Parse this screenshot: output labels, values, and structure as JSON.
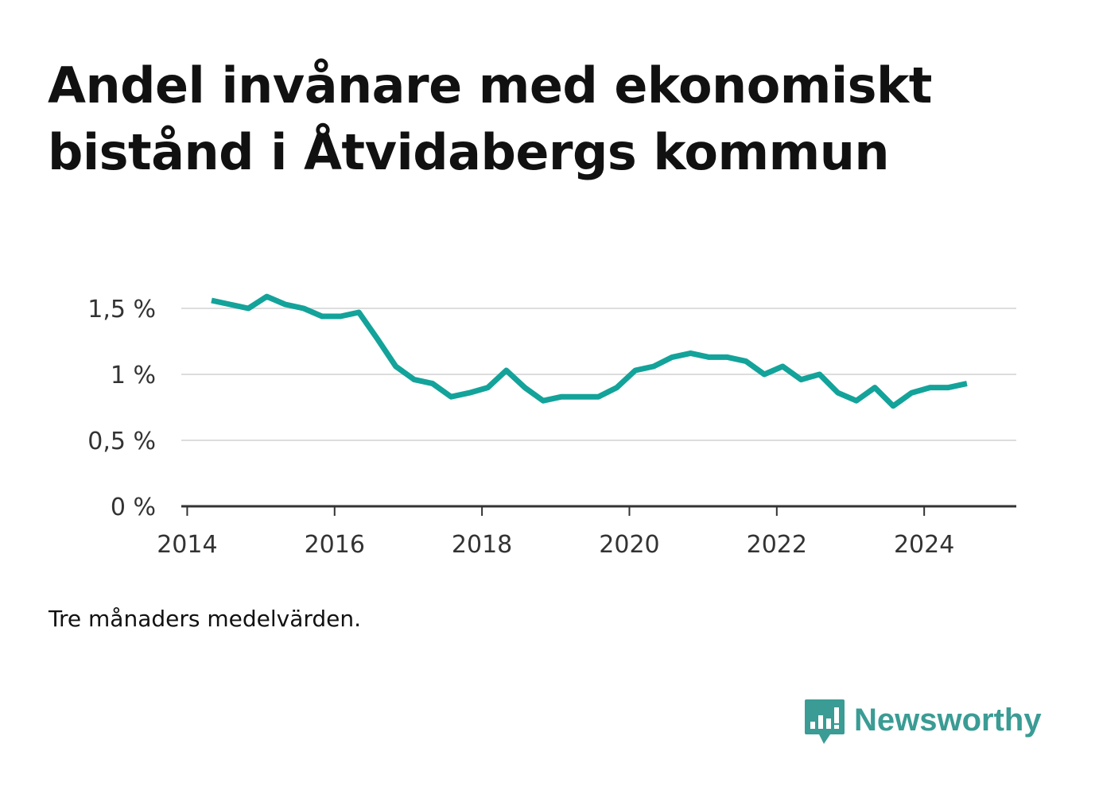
{
  "title": "Andel invånare med ekonomiskt bistånd i Åtvidabergs kommun",
  "caption": "Tre månaders medelvärden.",
  "brand": {
    "name": "Newsworthy",
    "color": "#3a9c94",
    "icon": "bar-chart-speech-bubble-icon"
  },
  "colors": {
    "line": "#13a39a",
    "grid": "#dddddd",
    "axis": "#333333"
  },
  "chart_data": {
    "type": "line",
    "title": "Andel invånare med ekonomiskt bistånd i Åtvidabergs kommun",
    "xlabel": "",
    "ylabel": "",
    "xlim": [
      2013.92,
      2025.25
    ],
    "ylim": [
      0,
      1.5
    ],
    "x_ticks": [
      {
        "value": 2014,
        "label": "2014"
      },
      {
        "value": 2016,
        "label": "2016"
      },
      {
        "value": 2018,
        "label": "2018"
      },
      {
        "value": 2020,
        "label": "2020"
      },
      {
        "value": 2022,
        "label": "2022"
      },
      {
        "value": 2024,
        "label": "2024"
      }
    ],
    "y_ticks": [
      {
        "value": 0,
        "label": "0 %"
      },
      {
        "value": 0.5,
        "label": "0,5 %"
      },
      {
        "value": 1,
        "label": "1 %"
      },
      {
        "value": 1.5,
        "label": "1,5 %"
      }
    ],
    "grid": true,
    "legend": "none",
    "series": [
      {
        "x": [
          2014.33,
          2014.58,
          2014.83,
          2015.08,
          2015.33,
          2015.58,
          2015.83,
          2016.08,
          2016.33,
          2016.58,
          2016.83,
          2017.08,
          2017.33,
          2017.58,
          2017.83,
          2018.08,
          2018.33,
          2018.58,
          2018.83,
          2019.08,
          2019.33,
          2019.58,
          2019.83,
          2020.08,
          2020.33,
          2020.58,
          2020.83,
          2021.08,
          2021.33,
          2021.58,
          2021.83,
          2022.08,
          2022.33,
          2022.58,
          2022.83,
          2023.08,
          2023.33,
          2023.58,
          2023.83,
          2024.08,
          2024.33,
          2024.58
        ],
        "y": [
          1.56,
          1.53,
          1.5,
          1.59,
          1.53,
          1.5,
          1.44,
          1.44,
          1.47,
          1.27,
          1.06,
          0.96,
          0.93,
          0.83,
          0.86,
          0.9,
          1.03,
          0.9,
          0.8,
          0.83,
          0.83,
          0.83,
          0.9,
          1.03,
          1.06,
          1.13,
          1.16,
          1.13,
          1.13,
          1.1,
          1.0,
          1.06,
          0.96,
          1.0,
          0.86,
          0.8,
          0.9,
          0.76,
          0.86,
          0.9,
          0.9,
          0.93
        ]
      }
    ]
  }
}
